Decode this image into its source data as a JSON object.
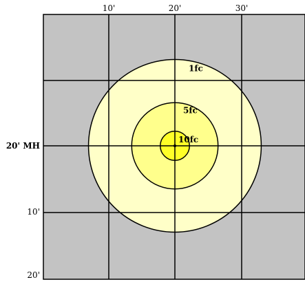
{
  "grid_spacing_ft": 10,
  "top_axis": {
    "labels": [
      "10'",
      "20'",
      "30'"
    ]
  },
  "left_axis": {
    "labels": [
      "20' MH",
      "10'",
      "20'"
    ]
  },
  "isolines": [
    {
      "label": "1fc",
      "radius_ft": 13
    },
    {
      "label": "5fc",
      "radius_ft": 6.5
    },
    {
      "label": "10fc",
      "radius_ft": 2.2
    }
  ],
  "colors": {
    "ground": "#c3c3c3",
    "grid_line": "#000000",
    "zone_1fc": "#ffffc8",
    "zone_5fc": "#ffff8c",
    "zone_10fc": "#ffff28"
  }
}
